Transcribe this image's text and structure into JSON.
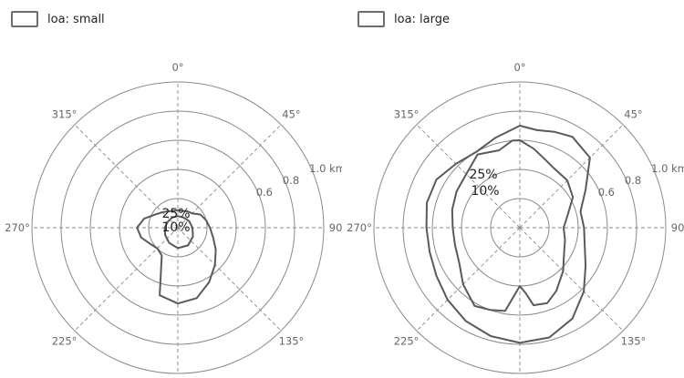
{
  "chart_data": [
    {
      "type": "polar-contour",
      "legend": "loa: small",
      "angle_labels": [
        "0°",
        "45°",
        "90°",
        "135°",
        "180°",
        "225°",
        "270°",
        "315°"
      ],
      "radius_labels": [
        {
          "value": 0.6,
          "label": "0.6"
        },
        {
          "value": 0.8,
          "label": "0.8"
        },
        {
          "value": 1.0,
          "label": "1.0 km"
        }
      ],
      "rmax": 1.0,
      "rings": [
        0.2,
        0.4,
        0.6,
        0.8,
        1.0
      ],
      "contour_labels": [
        "25%",
        "10%"
      ],
      "series": [
        {
          "label": "25%",
          "points": [
            [
              0,
              0.08
            ],
            [
              30,
              0.08
            ],
            [
              60,
              0.09
            ],
            [
              90,
              0.1
            ],
            [
              120,
              0.12
            ],
            [
              150,
              0.14
            ],
            [
              180,
              0.14
            ],
            [
              210,
              0.12
            ],
            [
              240,
              0.1
            ],
            [
              270,
              0.09
            ],
            [
              300,
              0.08
            ],
            [
              330,
              0.08
            ]
          ]
        },
        {
          "label": "10%",
          "points": [
            [
              0,
              0.12
            ],
            [
              15,
              0.12
            ],
            [
              30,
              0.13
            ],
            [
              45,
              0.14
            ],
            [
              60,
              0.18
            ],
            [
              75,
              0.2
            ],
            [
              90,
              0.22
            ],
            [
              105,
              0.25
            ],
            [
              120,
              0.3
            ],
            [
              135,
              0.36
            ],
            [
              150,
              0.43
            ],
            [
              165,
              0.5
            ],
            [
              180,
              0.52
            ],
            [
              195,
              0.48
            ],
            [
              210,
              0.22
            ],
            [
              225,
              0.2
            ],
            [
              240,
              0.22
            ],
            [
              255,
              0.26
            ],
            [
              270,
              0.28
            ],
            [
              285,
              0.24
            ],
            [
              300,
              0.18
            ],
            [
              315,
              0.15
            ],
            [
              330,
              0.13
            ],
            [
              345,
              0.12
            ]
          ]
        }
      ]
    },
    {
      "type": "polar-contour",
      "legend": "loa: large",
      "angle_labels": [
        "0°",
        "45°",
        "90°",
        "135°",
        "180°",
        "225°",
        "270°",
        "315°"
      ],
      "radius_labels": [
        {
          "value": 0.6,
          "label": "0.6"
        },
        {
          "value": 0.8,
          "label": "0.8"
        },
        {
          "value": 1.0,
          "label": "1.0 km"
        }
      ],
      "rmax": 1.0,
      "rings": [
        0.2,
        0.4,
        0.6,
        0.8,
        1.0
      ],
      "contour_labels": [
        "25%",
        "10%"
      ],
      "series": [
        {
          "label": "25%",
          "points": [
            [
              0,
              0.6
            ],
            [
              10,
              0.55
            ],
            [
              20,
              0.5
            ],
            [
              30,
              0.47
            ],
            [
              45,
              0.46
            ],
            [
              60,
              0.42
            ],
            [
              75,
              0.34
            ],
            [
              90,
              0.3
            ],
            [
              105,
              0.32
            ],
            [
              120,
              0.35
            ],
            [
              135,
              0.42
            ],
            [
              150,
              0.5
            ],
            [
              160,
              0.55
            ],
            [
              170,
              0.54
            ],
            [
              175,
              0.45
            ],
            [
              180,
              0.4
            ],
            [
              190,
              0.58
            ],
            [
              200,
              0.6
            ],
            [
              210,
              0.62
            ],
            [
              225,
              0.55
            ],
            [
              240,
              0.48
            ],
            [
              255,
              0.46
            ],
            [
              270,
              0.46
            ],
            [
              285,
              0.48
            ],
            [
              300,
              0.5
            ],
            [
              315,
              0.52
            ],
            [
              330,
              0.58
            ],
            [
              345,
              0.55
            ],
            [
              355,
              0.6
            ]
          ]
        },
        {
          "label": "10%",
          "points": [
            [
              0,
              0.7
            ],
            [
              10,
              0.68
            ],
            [
              20,
              0.7
            ],
            [
              30,
              0.72
            ],
            [
              45,
              0.68
            ],
            [
              60,
              0.52
            ],
            [
              75,
              0.43
            ],
            [
              90,
              0.44
            ],
            [
              105,
              0.46
            ],
            [
              120,
              0.52
            ],
            [
              135,
              0.62
            ],
            [
              150,
              0.72
            ],
            [
              165,
              0.78
            ],
            [
              180,
              0.79
            ],
            [
              195,
              0.77
            ],
            [
              210,
              0.74
            ],
            [
              225,
              0.7
            ],
            [
              240,
              0.66
            ],
            [
              255,
              0.64
            ],
            [
              270,
              0.64
            ],
            [
              285,
              0.66
            ],
            [
              300,
              0.66
            ],
            [
              315,
              0.62
            ],
            [
              330,
              0.6
            ],
            [
              345,
              0.64
            ]
          ]
        }
      ]
    }
  ]
}
